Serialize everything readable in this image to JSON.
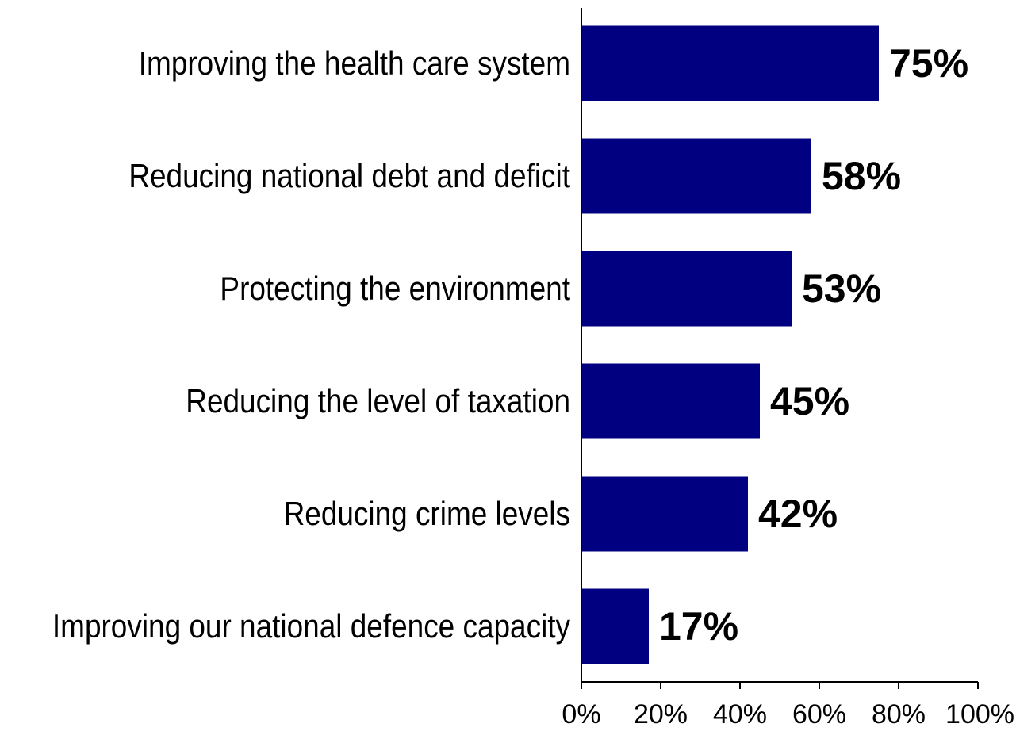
{
  "chart_data": {
    "type": "bar",
    "orientation": "horizontal",
    "categories": [
      "Improving the health care system",
      "Reducing national debt and deficit",
      "Protecting the environment",
      "Reducing the level of taxation",
      "Reducing crime levels",
      "Improving our national defence capacity"
    ],
    "values": [
      75,
      58,
      53,
      45,
      42,
      17
    ],
    "value_labels": [
      "75%",
      "58%",
      "53%",
      "45%",
      "42%",
      "17%"
    ],
    "xlim": [
      0,
      100
    ],
    "xticks": [
      0,
      20,
      40,
      60,
      80,
      100
    ],
    "xtick_labels": [
      "0%",
      "20%",
      "40%",
      "60%",
      "80%",
      "100%"
    ],
    "title": "",
    "xlabel": "",
    "ylabel": "",
    "bar_color": "#000080",
    "grid": false,
    "legend": "none"
  }
}
